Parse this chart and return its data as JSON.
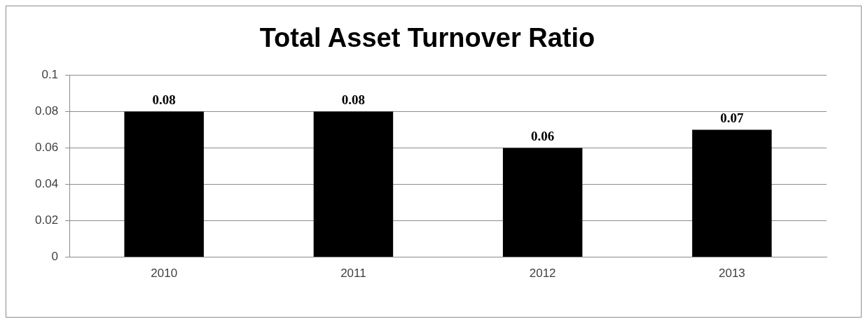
{
  "chart_data": {
    "type": "bar",
    "title": "Total Asset Turnover Ratio",
    "categories": [
      "2010",
      "2011",
      "2012",
      "2013"
    ],
    "values": [
      0.08,
      0.08,
      0.06,
      0.07
    ],
    "color": "#000000",
    "ylim": [
      0,
      0.1
    ],
    "yticks": [
      0,
      0.02,
      0.04,
      0.06,
      0.08,
      0.1
    ],
    "grid": "y",
    "legend": false,
    "data_labels": true
  }
}
